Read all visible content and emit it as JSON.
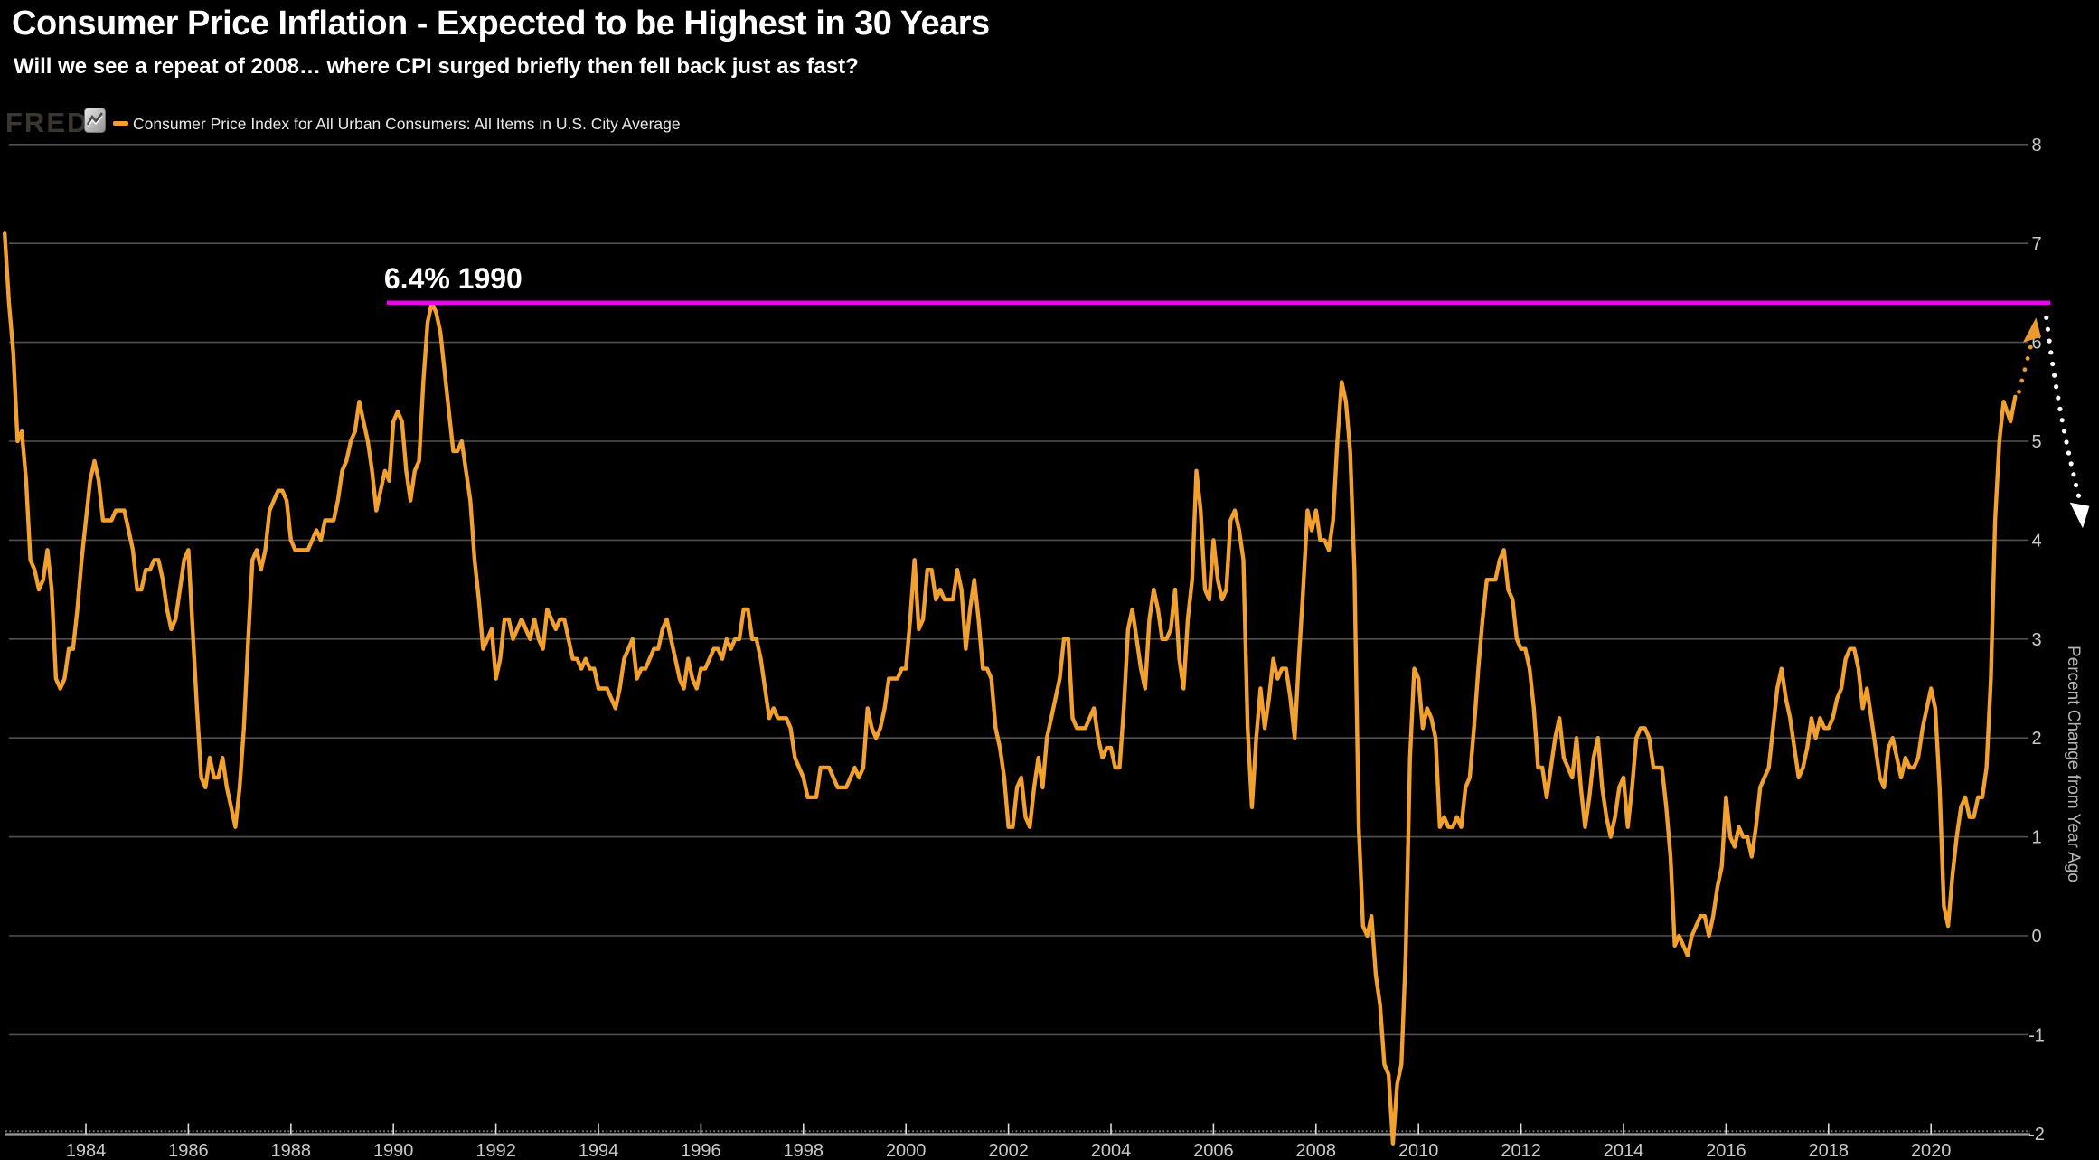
{
  "header": {
    "title": "Consumer Price Inflation - Expected to be Highest in 30 Years",
    "subtitle": "Will we see a repeat of 2008… where CPI surged briefly then fell back just as fast?"
  },
  "branding": {
    "logo_text": "FRED",
    "logo_icon": "line-chart-icon"
  },
  "legend": {
    "label": "Consumer Price Index for All Urban Consumers: All Items in U.S. City Average"
  },
  "colors": {
    "background": "#000000",
    "series": "#f2a02e",
    "threshold": "#ee00ee",
    "grid": "#515151",
    "axis": "#999999",
    "axis_texture": "#777777",
    "tick_label": "#c9c9c9",
    "y_title": "#b5b5b5",
    "title_text": "#ffffff",
    "legend_text": "#e9e9e9",
    "logo_text": "#3b372f",
    "white_arrow": "#ffffff",
    "orange_arrow": "#e9992e"
  },
  "axes": {
    "x": {
      "tick_years": [
        1984,
        1986,
        1988,
        1990,
        1992,
        1994,
        1996,
        1998,
        2000,
        2002,
        2004,
        2006,
        2008,
        2010,
        2012,
        2014,
        2016,
        2018,
        2020
      ]
    },
    "y": {
      "title": "Percent Change from Year Ago",
      "min": -2,
      "max": 8,
      "tick_values": [
        8,
        7,
        6,
        5,
        4,
        3,
        2,
        1,
        0,
        -1,
        -2
      ],
      "gridline_values": [
        8,
        7,
        6,
        5,
        4,
        3,
        2,
        1,
        0,
        -1
      ]
    }
  },
  "annotations": {
    "threshold": {
      "label": "6.4% 1990",
      "value": 6.4,
      "from_year": 1989.87,
      "to_year": 2022.33,
      "color": "#ee00ee",
      "label_color": "#ffffff"
    },
    "orange_projection": {
      "color": "#e9992e",
      "tail": [
        {
          "dm": 1.6,
          "v": 5.2
        },
        {
          "dm": 2.7,
          "v": 5.45
        }
      ],
      "dots_from": {
        "dm": 3.6,
        "v": 5.5
      },
      "dots_to": {
        "dm": 6.3,
        "v": 5.95
      },
      "dot_count": 5,
      "head": {
        "dm": 7.6,
        "v": 6.25
      }
    },
    "white_arrow": {
      "color": "#ffffff",
      "from": {
        "year": 2022.25,
        "value": 6.25
      },
      "ctrl": {
        "year": 2022.47,
        "value": 5.3
      },
      "to": {
        "year": 2022.88,
        "value": 4.45
      },
      "dot_count": 17,
      "head": {
        "year": 2022.96,
        "value": 4.12
      }
    }
  },
  "chart_data": {
    "type": "line",
    "series_name": "Consumer Price Index for All Urban Consumers: All Items in U.S. City Average",
    "color": "#f2a02e",
    "start_month": "1982-06",
    "end_month": "2021-06",
    "frequency": "monthly",
    "xlabel": "",
    "ylabel": "Percent Change from Year Ago",
    "ylim": [
      -2,
      8
    ],
    "grid": true,
    "values": [
      7.1,
      6.4,
      5.9,
      5.0,
      5.1,
      4.6,
      3.8,
      3.7,
      3.5,
      3.6,
      3.9,
      3.5,
      2.6,
      2.5,
      2.6,
      2.9,
      2.9,
      3.3,
      3.8,
      4.2,
      4.6,
      4.8,
      4.6,
      4.2,
      4.2,
      4.2,
      4.3,
      4.3,
      4.3,
      4.1,
      3.9,
      3.5,
      3.5,
      3.7,
      3.7,
      3.8,
      3.8,
      3.6,
      3.3,
      3.1,
      3.2,
      3.5,
      3.8,
      3.9,
      3.1,
      2.3,
      1.6,
      1.5,
      1.8,
      1.6,
      1.6,
      1.8,
      1.5,
      1.3,
      1.1,
      1.5,
      2.1,
      3.0,
      3.8,
      3.9,
      3.7,
      3.9,
      4.3,
      4.4,
      4.5,
      4.5,
      4.4,
      4.0,
      3.9,
      3.9,
      3.9,
      3.9,
      4.0,
      4.1,
      4.0,
      4.2,
      4.2,
      4.2,
      4.4,
      4.7,
      4.8,
      5.0,
      5.1,
      5.4,
      5.2,
      5.0,
      4.7,
      4.3,
      4.5,
      4.7,
      4.6,
      5.2,
      5.3,
      5.2,
      4.7,
      4.4,
      4.7,
      4.8,
      5.6,
      6.2,
      6.4,
      6.3,
      6.1,
      5.7,
      5.3,
      4.9,
      4.9,
      5.0,
      4.7,
      4.4,
      3.8,
      3.4,
      2.9,
      3.0,
      3.1,
      2.6,
      2.8,
      3.2,
      3.2,
      3.0,
      3.1,
      3.2,
      3.1,
      3.0,
      3.2,
      3.0,
      2.9,
      3.3,
      3.2,
      3.1,
      3.2,
      3.2,
      3.0,
      2.8,
      2.8,
      2.7,
      2.8,
      2.7,
      2.7,
      2.5,
      2.5,
      2.5,
      2.4,
      2.3,
      2.5,
      2.8,
      2.9,
      3.0,
      2.6,
      2.7,
      2.7,
      2.8,
      2.9,
      2.9,
      3.1,
      3.2,
      3.0,
      2.8,
      2.6,
      2.5,
      2.8,
      2.6,
      2.5,
      2.7,
      2.7,
      2.8,
      2.9,
      2.9,
      2.8,
      3.0,
      2.9,
      3.0,
      3.0,
      3.3,
      3.3,
      3.0,
      3.0,
      2.8,
      2.5,
      2.2,
      2.3,
      2.2,
      2.2,
      2.2,
      2.1,
      1.8,
      1.7,
      1.6,
      1.4,
      1.4,
      1.4,
      1.7,
      1.7,
      1.7,
      1.6,
      1.5,
      1.5,
      1.5,
      1.6,
      1.7,
      1.6,
      1.7,
      2.3,
      2.1,
      2.0,
      2.1,
      2.3,
      2.6,
      2.6,
      2.6,
      2.7,
      2.7,
      3.2,
      3.8,
      3.1,
      3.2,
      3.7,
      3.7,
      3.4,
      3.5,
      3.4,
      3.4,
      3.4,
      3.7,
      3.5,
      2.9,
      3.3,
      3.6,
      3.2,
      2.7,
      2.7,
      2.6,
      2.1,
      1.9,
      1.6,
      1.1,
      1.1,
      1.5,
      1.6,
      1.2,
      1.1,
      1.5,
      1.8,
      1.5,
      2.0,
      2.2,
      2.4,
      2.6,
      3.0,
      3.0,
      2.2,
      2.1,
      2.1,
      2.1,
      2.2,
      2.3,
      2.0,
      1.8,
      1.9,
      1.9,
      1.7,
      1.7,
      2.3,
      3.1,
      3.3,
      3.0,
      2.7,
      2.5,
      3.2,
      3.5,
      3.3,
      3.0,
      3.0,
      3.1,
      3.5,
      2.8,
      2.5,
      3.2,
      3.6,
      4.7,
      4.3,
      3.5,
      3.4,
      4.0,
      3.6,
      3.4,
      3.5,
      4.2,
      4.3,
      4.1,
      3.8,
      2.1,
      1.3,
      2.0,
      2.5,
      2.1,
      2.4,
      2.8,
      2.6,
      2.7,
      2.7,
      2.4,
      2.0,
      2.8,
      3.5,
      4.3,
      4.1,
      4.3,
      4.0,
      4.0,
      3.9,
      4.2,
      5.0,
      5.6,
      5.4,
      4.9,
      3.7,
      1.1,
      0.1,
      0.0,
      0.2,
      -0.4,
      -0.7,
      -1.3,
      -1.4,
      -2.1,
      -1.5,
      -1.3,
      -0.2,
      1.8,
      2.7,
      2.6,
      2.1,
      2.3,
      2.2,
      2.0,
      1.1,
      1.2,
      1.1,
      1.1,
      1.2,
      1.1,
      1.5,
      1.6,
      2.1,
      2.7,
      3.2,
      3.6,
      3.6,
      3.6,
      3.8,
      3.9,
      3.5,
      3.4,
      3.0,
      2.9,
      2.9,
      2.7,
      2.3,
      1.7,
      1.7,
      1.4,
      1.7,
      2.0,
      2.2,
      1.8,
      1.7,
      1.6,
      2.0,
      1.5,
      1.1,
      1.4,
      1.8,
      2.0,
      1.5,
      1.2,
      1.0,
      1.2,
      1.5,
      1.6,
      1.1,
      1.5,
      2.0,
      2.1,
      2.1,
      2.0,
      1.7,
      1.7,
      1.7,
      1.3,
      0.8,
      -0.1,
      0.0,
      -0.1,
      -0.2,
      0.0,
      0.1,
      0.2,
      0.2,
      0.0,
      0.2,
      0.5,
      0.7,
      1.4,
      1.0,
      0.9,
      1.1,
      1.0,
      1.0,
      0.8,
      1.1,
      1.5,
      1.6,
      1.7,
      2.1,
      2.5,
      2.7,
      2.4,
      2.2,
      1.9,
      1.6,
      1.7,
      1.9,
      2.2,
      2.0,
      2.2,
      2.1,
      2.1,
      2.2,
      2.4,
      2.5,
      2.8,
      2.9,
      2.9,
      2.7,
      2.3,
      2.5,
      2.2,
      1.9,
      1.6,
      1.5,
      1.9,
      2.0,
      1.8,
      1.6,
      1.8,
      1.7,
      1.7,
      1.8,
      2.1,
      2.3,
      2.5,
      2.3,
      1.5,
      0.3,
      0.1,
      0.6,
      1.0,
      1.3,
      1.4,
      1.2,
      1.2,
      1.4,
      1.4,
      1.7,
      2.6,
      4.2,
      5.0,
      5.4
    ]
  }
}
